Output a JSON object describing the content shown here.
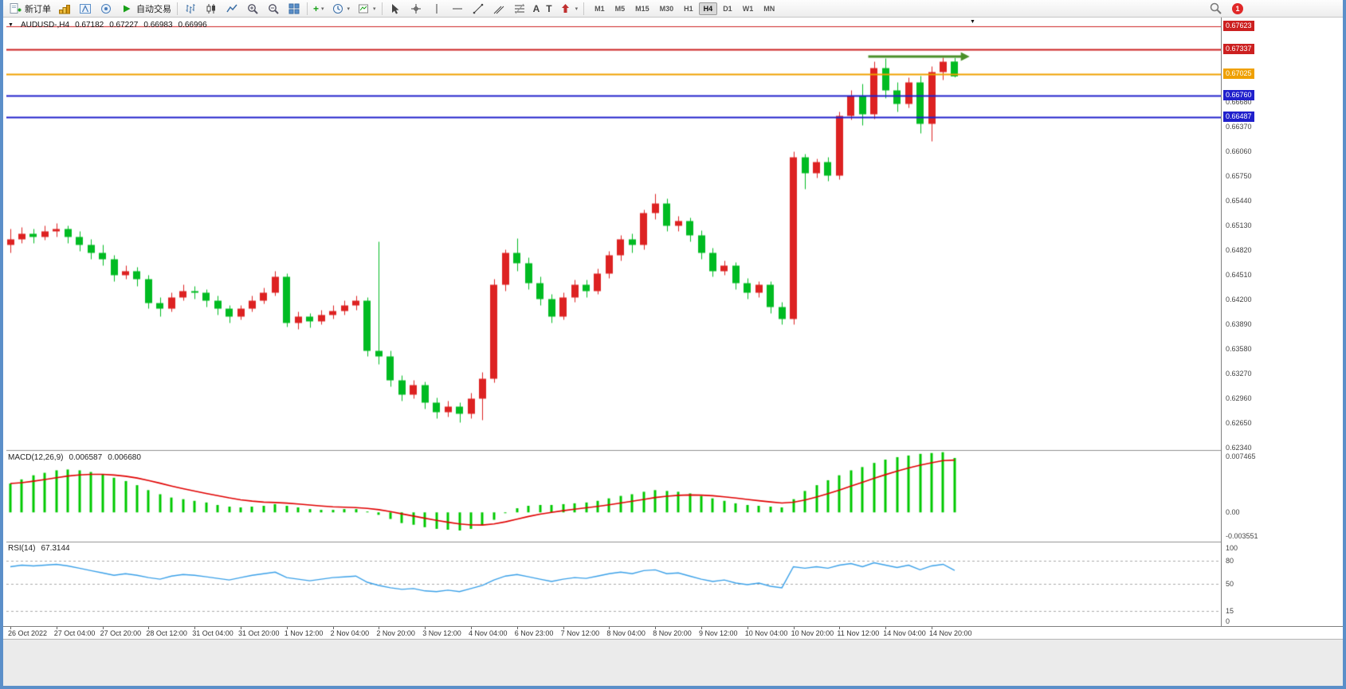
{
  "colors": {
    "window_border": "#5b8fc9",
    "toolbar_bg": "#f0f0f0",
    "pane_bg": "#ffffff"
  },
  "toolbar": {
    "new_order_label": "新订单",
    "autotrading_label": "自动交易",
    "timeframes": [
      "M1",
      "M5",
      "M15",
      "M30",
      "H1",
      "H4",
      "D1",
      "W1",
      "MN"
    ],
    "active_timeframe": "H4",
    "notification_count": "1",
    "icons": {
      "new-order-icon": "document-with-green-plus",
      "market-watch-icon": "gold-bars",
      "navigator-icon": "compass-window",
      "data-window-icon": "circle-indicator",
      "autotrading-icon": "green-play-triangle",
      "bar-chart-icon": "ohlc-bars",
      "candlestick-chart-icon": "two-candles",
      "line-chart-icon": "zigzag-line",
      "zoom-in-icon": "magnifier-plus",
      "zoom-out-icon": "magnifier-minus",
      "tile-windows-icon": "blue-grid-2x2",
      "indicators-icon": "green-plus-dropdown",
      "periods-icon": "clock-dropdown",
      "templates-icon": "chart-page-dropdown",
      "cursor-icon": "pointer-arrow",
      "crosshair-icon": "crosshair",
      "vertical-line-icon": "vertical-bar",
      "horizontal-line-icon": "horizontal-bar",
      "trendline-icon": "diagonal-line",
      "channel-icon": "parallel-diagonals",
      "fibonacci-icon": "fibo-levels",
      "text-icon": "letter-A",
      "label-icon": "letter-T",
      "arrows-icon": "red-arrow-dropdown",
      "search-icon": "magnifier"
    }
  },
  "chart_header": {
    "symbol_label": "AUDUSD-,H4",
    "open": "0.67182",
    "high": "0.67227",
    "low": "0.66983",
    "close": "0.66996"
  },
  "indicator_labels": {
    "macd_name": "MACD(12,26,9)",
    "macd_main": "0.006587",
    "macd_signal": "0.006680",
    "rsi_name": "RSI(14)",
    "rsi_value": "67.3144"
  },
  "chart_data": [
    {
      "type": "candlestick",
      "symbol": "AUDUSD",
      "timeframe": "H4",
      "up_color": "#dd2222",
      "down_color": "#00bb22",
      "price_axis": {
        "visible_range": [
          0.62305,
          0.67735
        ],
        "grid_step": 0.0031,
        "grid_labels": [
          "0.66680",
          "0.66370",
          "0.66060",
          "0.65750",
          "0.65440",
          "0.65130",
          "0.64820",
          "0.64510",
          "0.64200",
          "0.63890",
          "0.63580",
          "0.63270",
          "0.62960",
          "0.62650",
          "0.62340"
        ]
      },
      "hlines": [
        {
          "price": 0.67623,
          "label": "0.67623",
          "color": "#cc2020",
          "width": 1
        },
        {
          "price": 0.67337,
          "label": "0.67337",
          "color": "#cc2020",
          "width": 2
        },
        {
          "price": 0.67025,
          "label": "0.67025",
          "color": "#efa000",
          "width": 2
        },
        {
          "price": 0.6676,
          "label": "0.66760",
          "color": "#2020cc",
          "width": 2
        },
        {
          "price": 0.66487,
          "label": "0.66487",
          "color": "#2020cc",
          "width": 2
        }
      ],
      "arrow": {
        "from_bar": 74.5,
        "to_bar": 83.3,
        "price": 0.67245,
        "color": "#4a8f29"
      },
      "time_labels": [
        {
          "text": "26 Oct 2022",
          "bar": 0
        },
        {
          "text": "27 Oct 04:00",
          "bar": 4
        },
        {
          "text": "27 Oct 20:00",
          "bar": 8
        },
        {
          "text": "28 Oct 12:00",
          "bar": 12
        },
        {
          "text": "31 Oct 04:00",
          "bar": 16
        },
        {
          "text": "31 Oct 20:00",
          "bar": 20
        },
        {
          "text": "1 Nov 12:00",
          "bar": 24
        },
        {
          "text": "2 Nov 04:00",
          "bar": 28
        },
        {
          "text": "2 Nov 20:00",
          "bar": 32
        },
        {
          "text": "3 Nov 12:00",
          "bar": 36
        },
        {
          "text": "4 Nov 04:00",
          "bar": 40
        },
        {
          "text": "6 Nov 23:00",
          "bar": 44
        },
        {
          "text": "7 Nov 12:00",
          "bar": 48
        },
        {
          "text": "8 Nov 04:00",
          "bar": 52
        },
        {
          "text": "8 Nov 20:00",
          "bar": 56
        },
        {
          "text": "9 Nov 12:00",
          "bar": 60
        },
        {
          "text": "10 Nov 04:00",
          "bar": 64
        },
        {
          "text": "10 Nov 20:00",
          "bar": 68
        },
        {
          "text": "11 Nov 12:00",
          "bar": 72
        },
        {
          "text": "14 Nov 04:00",
          "bar": 76
        },
        {
          "text": "14 Nov 20:00",
          "bar": 80
        }
      ],
      "candles": [
        [
          0.6488,
          0.6508,
          0.6478,
          0.6495
        ],
        [
          0.6495,
          0.651,
          0.649,
          0.6502
        ],
        [
          0.6502,
          0.6508,
          0.649,
          0.6498
        ],
        [
          0.6498,
          0.6512,
          0.6494,
          0.6505
        ],
        [
          0.6505,
          0.6515,
          0.6498,
          0.6508
        ],
        [
          0.6508,
          0.6512,
          0.649,
          0.6498
        ],
        [
          0.6498,
          0.6505,
          0.648,
          0.6488
        ],
        [
          0.6488,
          0.6495,
          0.647,
          0.6478
        ],
        [
          0.6478,
          0.6488,
          0.6462,
          0.647
        ],
        [
          0.647,
          0.6475,
          0.6442,
          0.645
        ],
        [
          0.645,
          0.6462,
          0.6445,
          0.6455
        ],
        [
          0.6455,
          0.646,
          0.6436,
          0.6445
        ],
        [
          0.6445,
          0.645,
          0.6408,
          0.6415
        ],
        [
          0.6415,
          0.6422,
          0.6398,
          0.6408
        ],
        [
          0.6408,
          0.6428,
          0.6404,
          0.6422
        ],
        [
          0.6422,
          0.6438,
          0.6418,
          0.643
        ],
        [
          0.643,
          0.6436,
          0.642,
          0.6428
        ],
        [
          0.6428,
          0.6432,
          0.641,
          0.6418
        ],
        [
          0.6418,
          0.6424,
          0.64,
          0.6408
        ],
        [
          0.6408,
          0.6412,
          0.639,
          0.6398
        ],
        [
          0.6398,
          0.6412,
          0.6394,
          0.6408
        ],
        [
          0.6408,
          0.6424,
          0.6404,
          0.6418
        ],
        [
          0.6418,
          0.6434,
          0.6414,
          0.6428
        ],
        [
          0.6428,
          0.6455,
          0.6424,
          0.6448
        ],
        [
          0.6448,
          0.6452,
          0.6385,
          0.639
        ],
        [
          0.639,
          0.6404,
          0.6382,
          0.6398
        ],
        [
          0.6398,
          0.6402,
          0.6384,
          0.6392
        ],
        [
          0.6392,
          0.6406,
          0.6388,
          0.64
        ],
        [
          0.64,
          0.6412,
          0.6395,
          0.6405
        ],
        [
          0.6405,
          0.6418,
          0.64,
          0.6412
        ],
        [
          0.6412,
          0.6424,
          0.6406,
          0.6418
        ],
        [
          0.6418,
          0.6422,
          0.6348,
          0.6355
        ],
        [
          0.6355,
          0.6492,
          0.6338,
          0.6348
        ],
        [
          0.6348,
          0.6355,
          0.631,
          0.6318
        ],
        [
          0.6318,
          0.6324,
          0.6292,
          0.63
        ],
        [
          0.63,
          0.6318,
          0.6295,
          0.6312
        ],
        [
          0.6312,
          0.6316,
          0.6282,
          0.629
        ],
        [
          0.629,
          0.6296,
          0.627,
          0.6278
        ],
        [
          0.6278,
          0.6292,
          0.6272,
          0.6285
        ],
        [
          0.6285,
          0.629,
          0.6265,
          0.6276
        ],
        [
          0.6276,
          0.6302,
          0.627,
          0.6295
        ],
        [
          0.6295,
          0.6328,
          0.6268,
          0.632
        ],
        [
          0.632,
          0.6445,
          0.6315,
          0.6438
        ],
        [
          0.6438,
          0.6482,
          0.643,
          0.6478
        ],
        [
          0.6478,
          0.6496,
          0.6455,
          0.6465
        ],
        [
          0.6465,
          0.6472,
          0.6432,
          0.644
        ],
        [
          0.644,
          0.6448,
          0.6412,
          0.642
        ],
        [
          0.642,
          0.6426,
          0.639,
          0.6398
        ],
        [
          0.6398,
          0.6428,
          0.6394,
          0.6422
        ],
        [
          0.6422,
          0.6444,
          0.6416,
          0.6438
        ],
        [
          0.6438,
          0.6444,
          0.6422,
          0.643
        ],
        [
          0.643,
          0.6458,
          0.6426,
          0.6452
        ],
        [
          0.6452,
          0.648,
          0.6446,
          0.6475
        ],
        [
          0.6475,
          0.65,
          0.6468,
          0.6495
        ],
        [
          0.6495,
          0.6502,
          0.6478,
          0.6488
        ],
        [
          0.6488,
          0.6532,
          0.6482,
          0.6528
        ],
        [
          0.6528,
          0.6552,
          0.652,
          0.654
        ],
        [
          0.654,
          0.6546,
          0.6505,
          0.6512
        ],
        [
          0.6512,
          0.6524,
          0.6505,
          0.6518
        ],
        [
          0.6518,
          0.6522,
          0.6492,
          0.65
        ],
        [
          0.65,
          0.6506,
          0.647,
          0.6478
        ],
        [
          0.6478,
          0.6484,
          0.6448,
          0.6455
        ],
        [
          0.6455,
          0.6468,
          0.645,
          0.6462
        ],
        [
          0.6462,
          0.6466,
          0.6432,
          0.644
        ],
        [
          0.644,
          0.6446,
          0.642,
          0.6428
        ],
        [
          0.6428,
          0.6442,
          0.6422,
          0.6438
        ],
        [
          0.6438,
          0.6442,
          0.6402,
          0.641
        ],
        [
          0.641,
          0.6416,
          0.6388,
          0.6395
        ],
        [
          0.6395,
          0.6605,
          0.6388,
          0.6598
        ],
        [
          0.6598,
          0.6602,
          0.6558,
          0.6578
        ],
        [
          0.6578,
          0.6596,
          0.6572,
          0.6592
        ],
        [
          0.6592,
          0.6598,
          0.6568,
          0.6575
        ],
        [
          0.6575,
          0.6655,
          0.657,
          0.665
        ],
        [
          0.665,
          0.6682,
          0.6645,
          0.6675
        ],
        [
          0.6675,
          0.669,
          0.6638,
          0.6652
        ],
        [
          0.6652,
          0.6718,
          0.6646,
          0.671
        ],
        [
          0.671,
          0.6722,
          0.6672,
          0.6682
        ],
        [
          0.6682,
          0.6692,
          0.6655,
          0.6665
        ],
        [
          0.6665,
          0.6698,
          0.666,
          0.6692
        ],
        [
          0.6692,
          0.67,
          0.6628,
          0.664
        ],
        [
          0.664,
          0.6712,
          0.6618,
          0.6705
        ],
        [
          0.6705,
          0.6723,
          0.6695,
          0.6718
        ],
        [
          0.67182,
          0.67227,
          0.66983,
          0.66996
        ]
      ]
    },
    {
      "type": "bar",
      "name": "MACD(12,26,9)",
      "histogram_color": "#00c800",
      "signal_color": "#e00000",
      "signal_period": 9,
      "range": [
        -0.003551,
        0.007465
      ],
      "axis_labels": [
        "0.007465",
        "0.00",
        "-0.003551"
      ],
      "values": [
        0.0035,
        0.004,
        0.0045,
        0.0048,
        0.0051,
        0.0052,
        0.0051,
        0.0049,
        0.0046,
        0.0042,
        0.0038,
        0.0033,
        0.0027,
        0.0022,
        0.0018,
        0.0016,
        0.0014,
        0.0012,
        0.0009,
        0.0007,
        0.0006,
        0.0007,
        0.0008,
        0.001,
        0.0008,
        0.0006,
        0.0004,
        0.0003,
        0.0003,
        0.0004,
        0.0004,
        0.0001,
        -0.0003,
        -0.0008,
        -0.0013,
        -0.0015,
        -0.0018,
        -0.002,
        -0.0021,
        -0.0022,
        -0.002,
        -0.0016,
        -0.0009,
        -0.0001,
        0.0005,
        0.0008,
        0.0009,
        0.0009,
        0.001,
        0.0011,
        0.0012,
        0.0014,
        0.0017,
        0.002,
        0.0022,
        0.0025,
        0.0027,
        0.0026,
        0.0025,
        0.0023,
        0.002,
        0.0017,
        0.0014,
        0.0011,
        0.0009,
        0.0008,
        0.0007,
        0.0006,
        0.0016,
        0.0026,
        0.0033,
        0.0039,
        0.0045,
        0.0051,
        0.0055,
        0.006,
        0.0064,
        0.0067,
        0.0069,
        0.0071,
        0.0072,
        0.0073,
        0.0066
      ]
    },
    {
      "type": "line",
      "name": "RSI(14)",
      "color": "#3aa0e8",
      "range": [
        0,
        100
      ],
      "levels": [
        80,
        50,
        15
      ],
      "axis_labels": [
        "100",
        "80",
        "50",
        "15",
        "0"
      ],
      "values": [
        72,
        74,
        73,
        74,
        75,
        73,
        70,
        67,
        64,
        61,
        63,
        61,
        58,
        56,
        60,
        62,
        61,
        59,
        57,
        55,
        58,
        61,
        63,
        65,
        58,
        56,
        54,
        56,
        58,
        59,
        60,
        52,
        48,
        45,
        43,
        44,
        41,
        40,
        42,
        40,
        44,
        48,
        55,
        60,
        62,
        59,
        56,
        53,
        56,
        58,
        57,
        60,
        63,
        65,
        63,
        67,
        68,
        63,
        64,
        60,
        56,
        53,
        55,
        51,
        49,
        51,
        47,
        45,
        72,
        70,
        72,
        70,
        74,
        76,
        72,
        77,
        74,
        71,
        74,
        68,
        73,
        75,
        67.3
      ]
    }
  ]
}
